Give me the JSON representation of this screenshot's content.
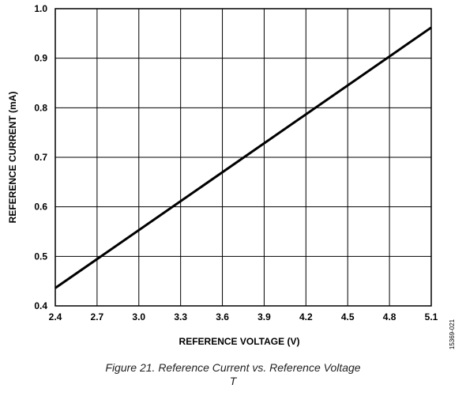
{
  "chart_data": {
    "type": "line",
    "xlabel": "REFERENCE VOLTAGE (V)",
    "ylabel": "REFERENCE CURRENT (mA)",
    "xlim": [
      2.4,
      5.1
    ],
    "ylim": [
      0.4,
      1.0
    ],
    "x_ticks": [
      "2.4",
      "2.7",
      "3.0",
      "3.3",
      "3.6",
      "3.9",
      "4.2",
      "4.5",
      "4.8",
      "5.1"
    ],
    "y_ticks": [
      "0.4",
      "0.5",
      "0.6",
      "0.7",
      "0.8",
      "0.9",
      "1.0"
    ],
    "grid": true,
    "series": [
      {
        "x": [
          2.4,
          5.1
        ],
        "y": [
          0.436,
          0.962
        ],
        "color": "#000000"
      }
    ]
  },
  "figure_id": "15369-021",
  "caption": "Figure 21. Reference Current vs. Reference Voltage",
  "caption_extra": "T"
}
